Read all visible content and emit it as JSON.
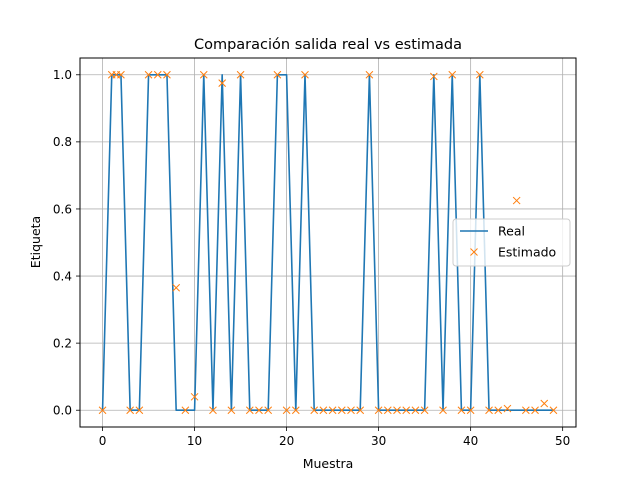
{
  "chart_data": {
    "type": "line",
    "title": "Comparación salida real vs estimada",
    "xlabel": "Muestra",
    "ylabel": "Etiqueta",
    "xlim": [
      -2.45,
      51.45
    ],
    "ylim": [
      -0.05,
      1.05
    ],
    "xticks": [
      0,
      10,
      20,
      30,
      40,
      50
    ],
    "yticks": [
      0.0,
      0.2,
      0.4,
      0.6,
      0.8,
      1.0
    ],
    "xtick_labels": [
      "0",
      "10",
      "20",
      "30",
      "40",
      "50"
    ],
    "ytick_labels": [
      "0.0",
      "0.2",
      "0.4",
      "0.6",
      "0.8",
      "1.0"
    ],
    "grid": true,
    "legend": {
      "position": "center-right",
      "entries": [
        "Real",
        "Estimado"
      ]
    },
    "x": [
      0,
      1,
      2,
      3,
      4,
      5,
      6,
      7,
      8,
      9,
      10,
      11,
      12,
      13,
      14,
      15,
      16,
      17,
      18,
      19,
      20,
      21,
      22,
      23,
      24,
      25,
      26,
      27,
      28,
      29,
      30,
      31,
      32,
      33,
      34,
      35,
      36,
      37,
      38,
      39,
      40,
      41,
      42,
      43,
      44,
      45,
      46,
      47,
      48,
      49
    ],
    "series": [
      {
        "name": "Real",
        "style": "line",
        "color": "#1f77b4",
        "values": [
          0,
          1,
          1,
          0,
          0,
          1,
          1,
          1,
          0,
          0,
          0,
          1,
          0,
          1,
          0,
          1,
          0,
          0,
          0,
          1,
          1,
          0,
          1,
          0,
          0,
          0,
          0,
          0,
          0,
          1,
          0,
          0,
          0,
          0,
          0,
          0,
          1,
          0,
          1,
          0,
          0,
          1,
          0,
          0,
          0,
          0,
          0,
          0,
          0,
          0
        ]
      },
      {
        "name": "Estimado",
        "style": "x-markers",
        "color": "#ff7f0e",
        "points": [
          [
            0,
            0.0
          ],
          [
            1,
            1.0
          ],
          [
            1.5,
            1.0
          ],
          [
            2,
            1.0
          ],
          [
            3,
            0.0
          ],
          [
            4,
            0.0
          ],
          [
            5,
            1.0
          ],
          [
            6,
            1.0
          ],
          [
            7,
            1.0
          ],
          [
            8,
            0.365
          ],
          [
            9,
            0.0
          ],
          [
            10,
            0.04
          ],
          [
            11,
            1.0
          ],
          [
            12,
            0.0
          ],
          [
            13,
            0.975
          ],
          [
            14,
            0.0
          ],
          [
            15,
            1.0
          ],
          [
            16,
            0.0
          ],
          [
            17,
            0.0
          ],
          [
            18,
            0.0
          ],
          [
            19,
            1.0
          ],
          [
            20,
            0.0
          ],
          [
            21,
            0.0
          ],
          [
            22,
            1.0
          ],
          [
            23,
            0.0
          ],
          [
            24,
            0.0
          ],
          [
            25,
            0.0
          ],
          [
            26,
            0.0
          ],
          [
            27,
            0.0
          ],
          [
            28,
            0.0
          ],
          [
            29,
            1.0
          ],
          [
            30,
            0.0
          ],
          [
            31,
            0.0
          ],
          [
            32,
            0.0
          ],
          [
            33,
            0.0
          ],
          [
            34,
            0.0
          ],
          [
            35,
            0.0
          ],
          [
            36,
            0.995
          ],
          [
            37,
            0.0
          ],
          [
            38,
            1.0
          ],
          [
            39,
            0.0
          ],
          [
            40,
            0.0
          ],
          [
            41,
            1.0
          ],
          [
            42,
            0.0
          ],
          [
            43,
            0.0
          ],
          [
            44,
            0.005
          ],
          [
            45,
            0.625
          ],
          [
            46,
            0.0
          ],
          [
            47,
            0.0
          ],
          [
            48,
            0.02
          ],
          [
            49,
            0.0
          ]
        ]
      }
    ]
  }
}
